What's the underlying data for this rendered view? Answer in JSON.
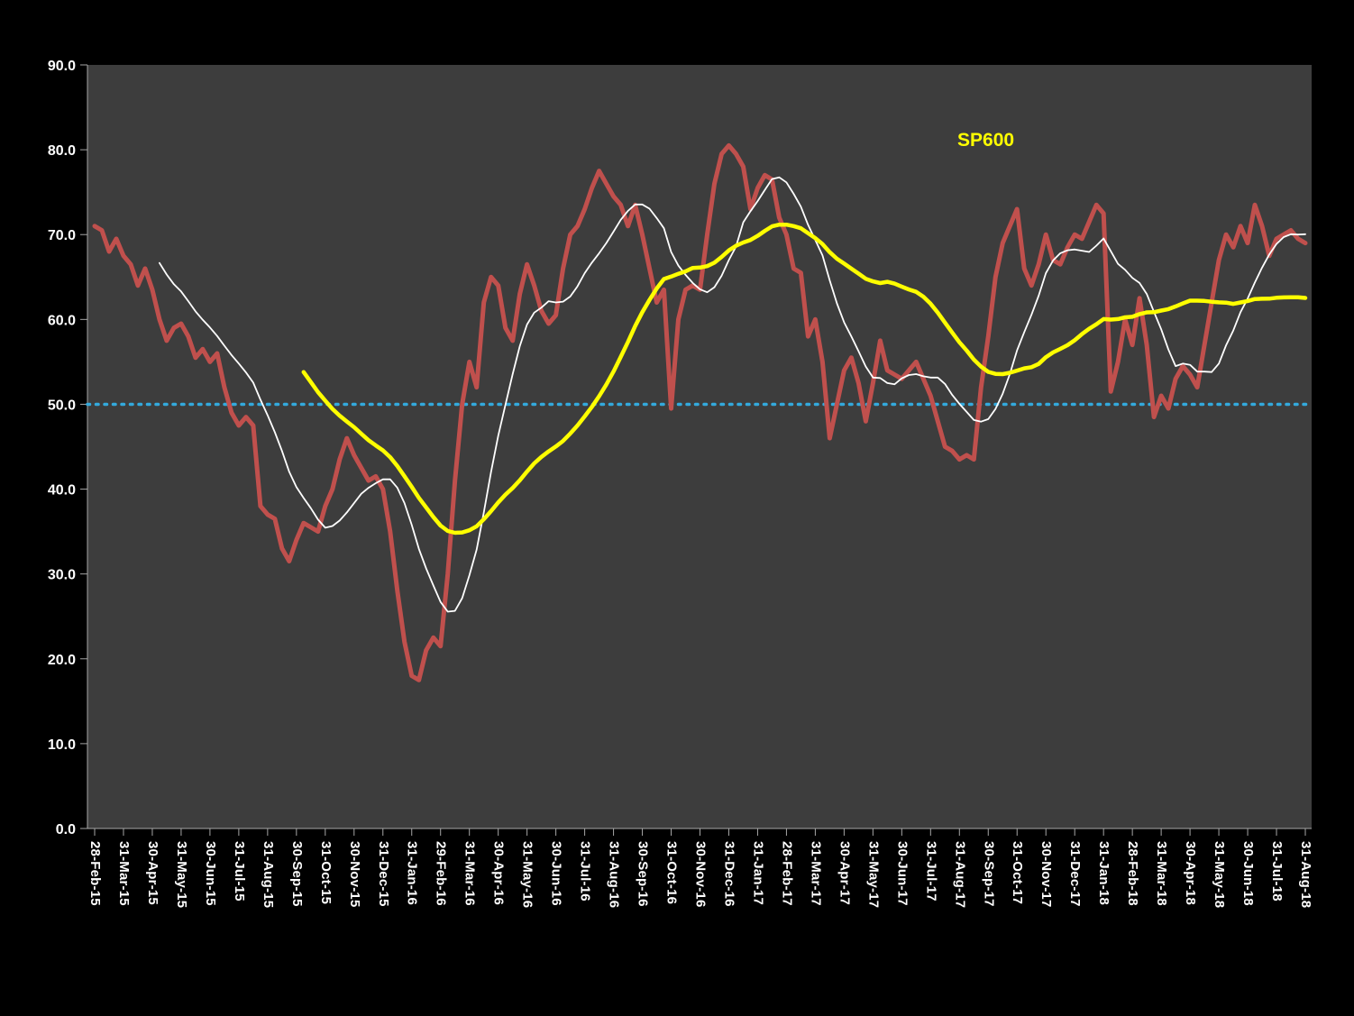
{
  "chart_data": {
    "type": "line",
    "title": "",
    "annotation": {
      "text": "SP600",
      "color": "#FFFF00"
    },
    "plot_bg": "#3D3D3D",
    "background": "#000000",
    "grid": false,
    "legend_position": "none",
    "points_per_month": 4,
    "x_axis": {
      "categories": [
        "28-Feb-15",
        "31-Mar-15",
        "30-Apr-15",
        "31-May-15",
        "30-Jun-15",
        "31-Jul-15",
        "31-Aug-15",
        "30-Sep-15",
        "31-Oct-15",
        "30-Nov-15",
        "31-Dec-15",
        "31-Jan-16",
        "29-Feb-16",
        "31-Mar-16",
        "30-Apr-16",
        "31-May-16",
        "30-Jun-16",
        "31-Jul-16",
        "31-Aug-16",
        "30-Sep-16",
        "31-Oct-16",
        "30-Nov-16",
        "31-Dec-16",
        "31-Jan-17",
        "28-Feb-17",
        "31-Mar-17",
        "30-Apr-17",
        "31-May-17",
        "30-Jun-17",
        "31-Jul-17",
        "31-Aug-17",
        "30-Sep-17",
        "31-Oct-17",
        "30-Nov-17",
        "31-Dec-17",
        "31-Jan-18",
        "28-Feb-18",
        "31-Mar-18",
        "30-Apr-18",
        "31-May-18",
        "30-Jun-18",
        "31-Jul-18",
        "31-Aug-18"
      ]
    },
    "y_axis": {
      "min": 0,
      "max": 90,
      "step": 10,
      "tick_labels": [
        "0.0",
        "10.0",
        "20.0",
        "30.0",
        "40.0",
        "50.0",
        "60.0",
        "70.0",
        "80.0",
        "90.0"
      ]
    },
    "reference_line": {
      "value": 50,
      "color": "#33A9DC",
      "style": "dotted"
    },
    "series": [
      {
        "name": "red",
        "role": "weekly-values",
        "color": "#C0504D",
        "width": 5,
        "values": [
          71,
          70.5,
          68,
          69.5,
          67.5,
          66.5,
          64,
          66,
          63.5,
          60,
          57.5,
          59,
          59.5,
          58,
          55.5,
          56.5,
          55,
          56,
          52,
          49,
          47.5,
          48.5,
          47.5,
          38,
          37,
          36.5,
          33,
          31.5,
          34,
          36,
          35.5,
          35,
          38,
          40,
          43.5,
          46,
          44,
          42.5,
          41,
          41.5,
          40,
          35,
          28,
          22,
          18,
          17.5,
          21,
          22.5,
          21.5,
          30,
          41,
          50,
          55,
          52,
          62,
          65,
          64,
          59,
          57.5,
          63,
          66.5,
          64,
          61,
          59.5,
          60.5,
          66,
          70,
          71,
          73,
          75.5,
          77.5,
          76,
          74.5,
          73.5,
          71,
          73.5,
          70,
          66,
          62,
          63.5,
          49.5,
          60,
          63.5,
          64,
          63.5,
          70,
          76,
          79.5,
          80.5,
          79.5,
          78,
          73,
          75.5,
          77,
          76.5,
          72,
          70,
          66,
          65.5,
          58,
          60,
          55,
          46,
          50,
          54,
          55.5,
          52.5,
          48,
          52.5,
          57.5,
          54,
          53.5,
          53,
          54,
          55,
          53,
          51,
          48,
          45,
          44.5,
          43.5,
          44,
          43.5,
          52,
          58,
          65,
          69,
          71,
          73,
          66,
          64,
          66.5,
          70,
          67,
          66.5,
          68.5,
          70,
          69.5,
          71.5,
          73.5,
          72.5,
          51.5,
          55,
          60,
          57,
          62.5,
          57,
          48.5,
          51,
          49.5,
          53,
          54.5,
          53.5,
          52,
          57,
          62,
          67,
          70,
          68.5,
          71,
          69,
          73.5,
          71,
          67.5,
          69.5,
          70,
          70.5,
          69.5,
          69
        ]
      },
      {
        "name": "white",
        "role": "short-moving-average",
        "color": "#FFFFFF",
        "width": 1.8,
        "derived": {
          "method": "sma",
          "window": 10,
          "source": "red"
        }
      },
      {
        "name": "yellow",
        "role": "long-moving-average",
        "color": "#FFFF00",
        "width": 4.5,
        "derived": {
          "method": "sma",
          "window": 30,
          "source": "red"
        }
      }
    ]
  }
}
